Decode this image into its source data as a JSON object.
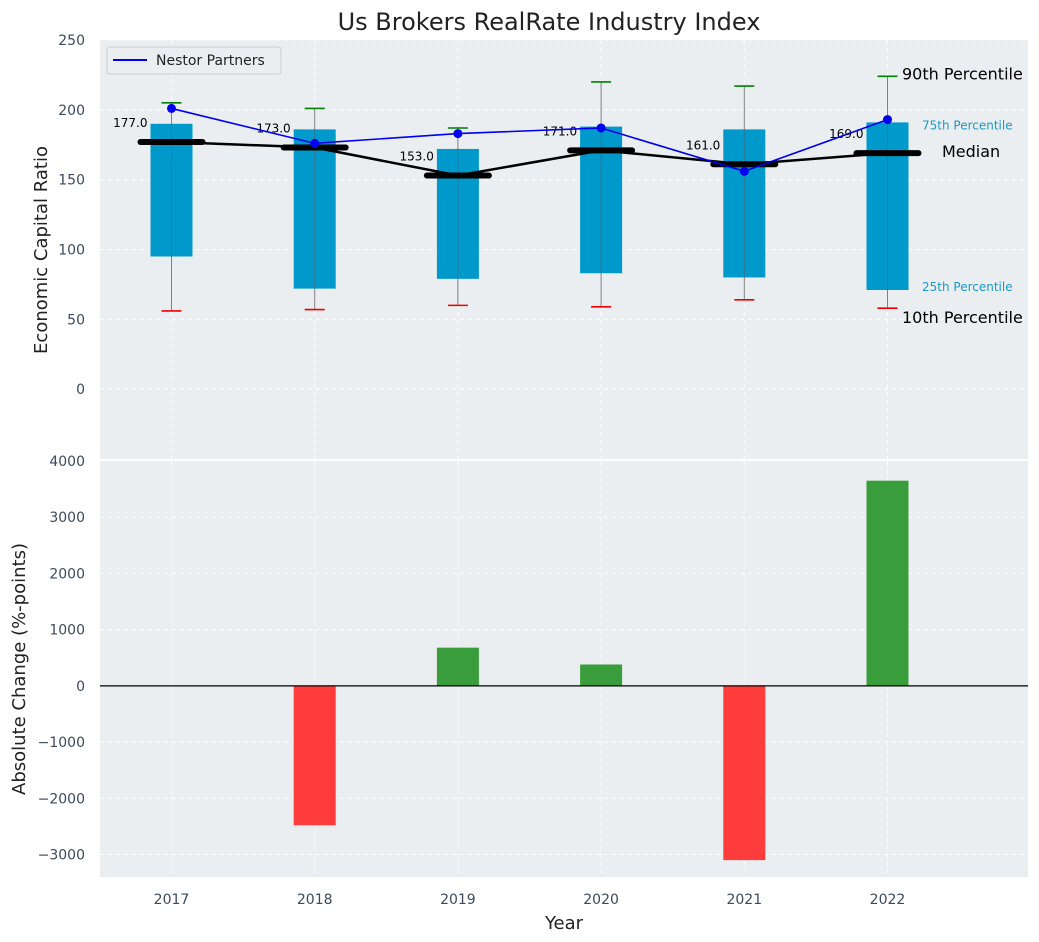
{
  "chart_data": {
    "title": "Us Brokers RealRate Industry Index",
    "xlabel": "Year",
    "categories": [
      "2017",
      "2018",
      "2019",
      "2020",
      "2021",
      "2022"
    ],
    "top": {
      "type": "box",
      "ylabel": "Economic Capital Ratio",
      "ylim": [
        -50,
        250
      ],
      "yticks": [
        0,
        50,
        100,
        150,
        200,
        250
      ],
      "p10": [
        56,
        57,
        60,
        59,
        64,
        58
      ],
      "p25": [
        95,
        72,
        79,
        83,
        80,
        71
      ],
      "median": [
        177,
        173,
        153,
        171,
        161,
        169
      ],
      "p75": [
        190,
        186,
        172,
        188,
        186,
        191
      ],
      "p90": [
        205,
        201,
        187,
        220,
        217,
        224
      ],
      "median_labels": [
        "177.0",
        "173.0",
        "153.0",
        "171.0",
        "161.0",
        "169.0"
      ],
      "series": [
        {
          "name": "Nestor Partners",
          "values": [
            201,
            176,
            183,
            187,
            156,
            193
          ],
          "color": "#0000ee"
        }
      ],
      "annotations": {
        "p90": "90th Percentile",
        "p75": "75th Percentile",
        "median": "Median",
        "p25": "25th Percentile",
        "p10": "10th Percentile"
      },
      "legend_position": "top-left"
    },
    "bottom": {
      "type": "bar",
      "ylabel": "Absolute Change (%-points)",
      "ylim": [
        -3400,
        4000
      ],
      "yticks": [
        -3000,
        -2000,
        -1000,
        0,
        1000,
        2000,
        3000,
        4000
      ],
      "ytick_labels": [
        "−3000",
        "−2000",
        "−1000",
        "0",
        "1000",
        "2000",
        "3000",
        "4000"
      ],
      "values": [
        0,
        -2480,
        680,
        380,
        -3100,
        3650
      ]
    },
    "colors": {
      "box": "#0099cc",
      "median": "#000000",
      "p90_cap": "#008000",
      "p10_cap": "#ee0000",
      "positive": "#3a9d3c",
      "negative": "#ff3c3c",
      "whisker": "#808080",
      "series": "#0000ee"
    }
  }
}
